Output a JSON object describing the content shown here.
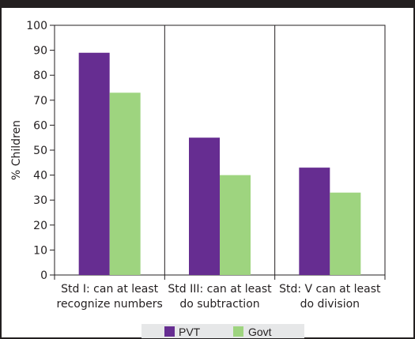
{
  "chart_data": {
    "type": "bar",
    "ylabel": "% Children",
    "ylim": [
      0,
      100
    ],
    "yticks": [
      "0",
      "10",
      "20",
      "30",
      "40",
      "50",
      "60",
      "70",
      "80",
      "90",
      "100"
    ],
    "categories": [
      [
        "Std I: can at least",
        "recognize numbers"
      ],
      [
        "Std III: can at least",
        "do subtraction"
      ],
      [
        "Std: V can at least",
        "do division"
      ]
    ],
    "series": [
      {
        "name": "PVT",
        "color": "#662d91",
        "values": [
          89,
          55,
          43
        ]
      },
      {
        "name": "Govt",
        "color": "#9ed47f",
        "values": [
          73,
          40,
          33
        ]
      }
    ],
    "legend_position": "bottom",
    "grid": "vertical-category-dividers"
  }
}
